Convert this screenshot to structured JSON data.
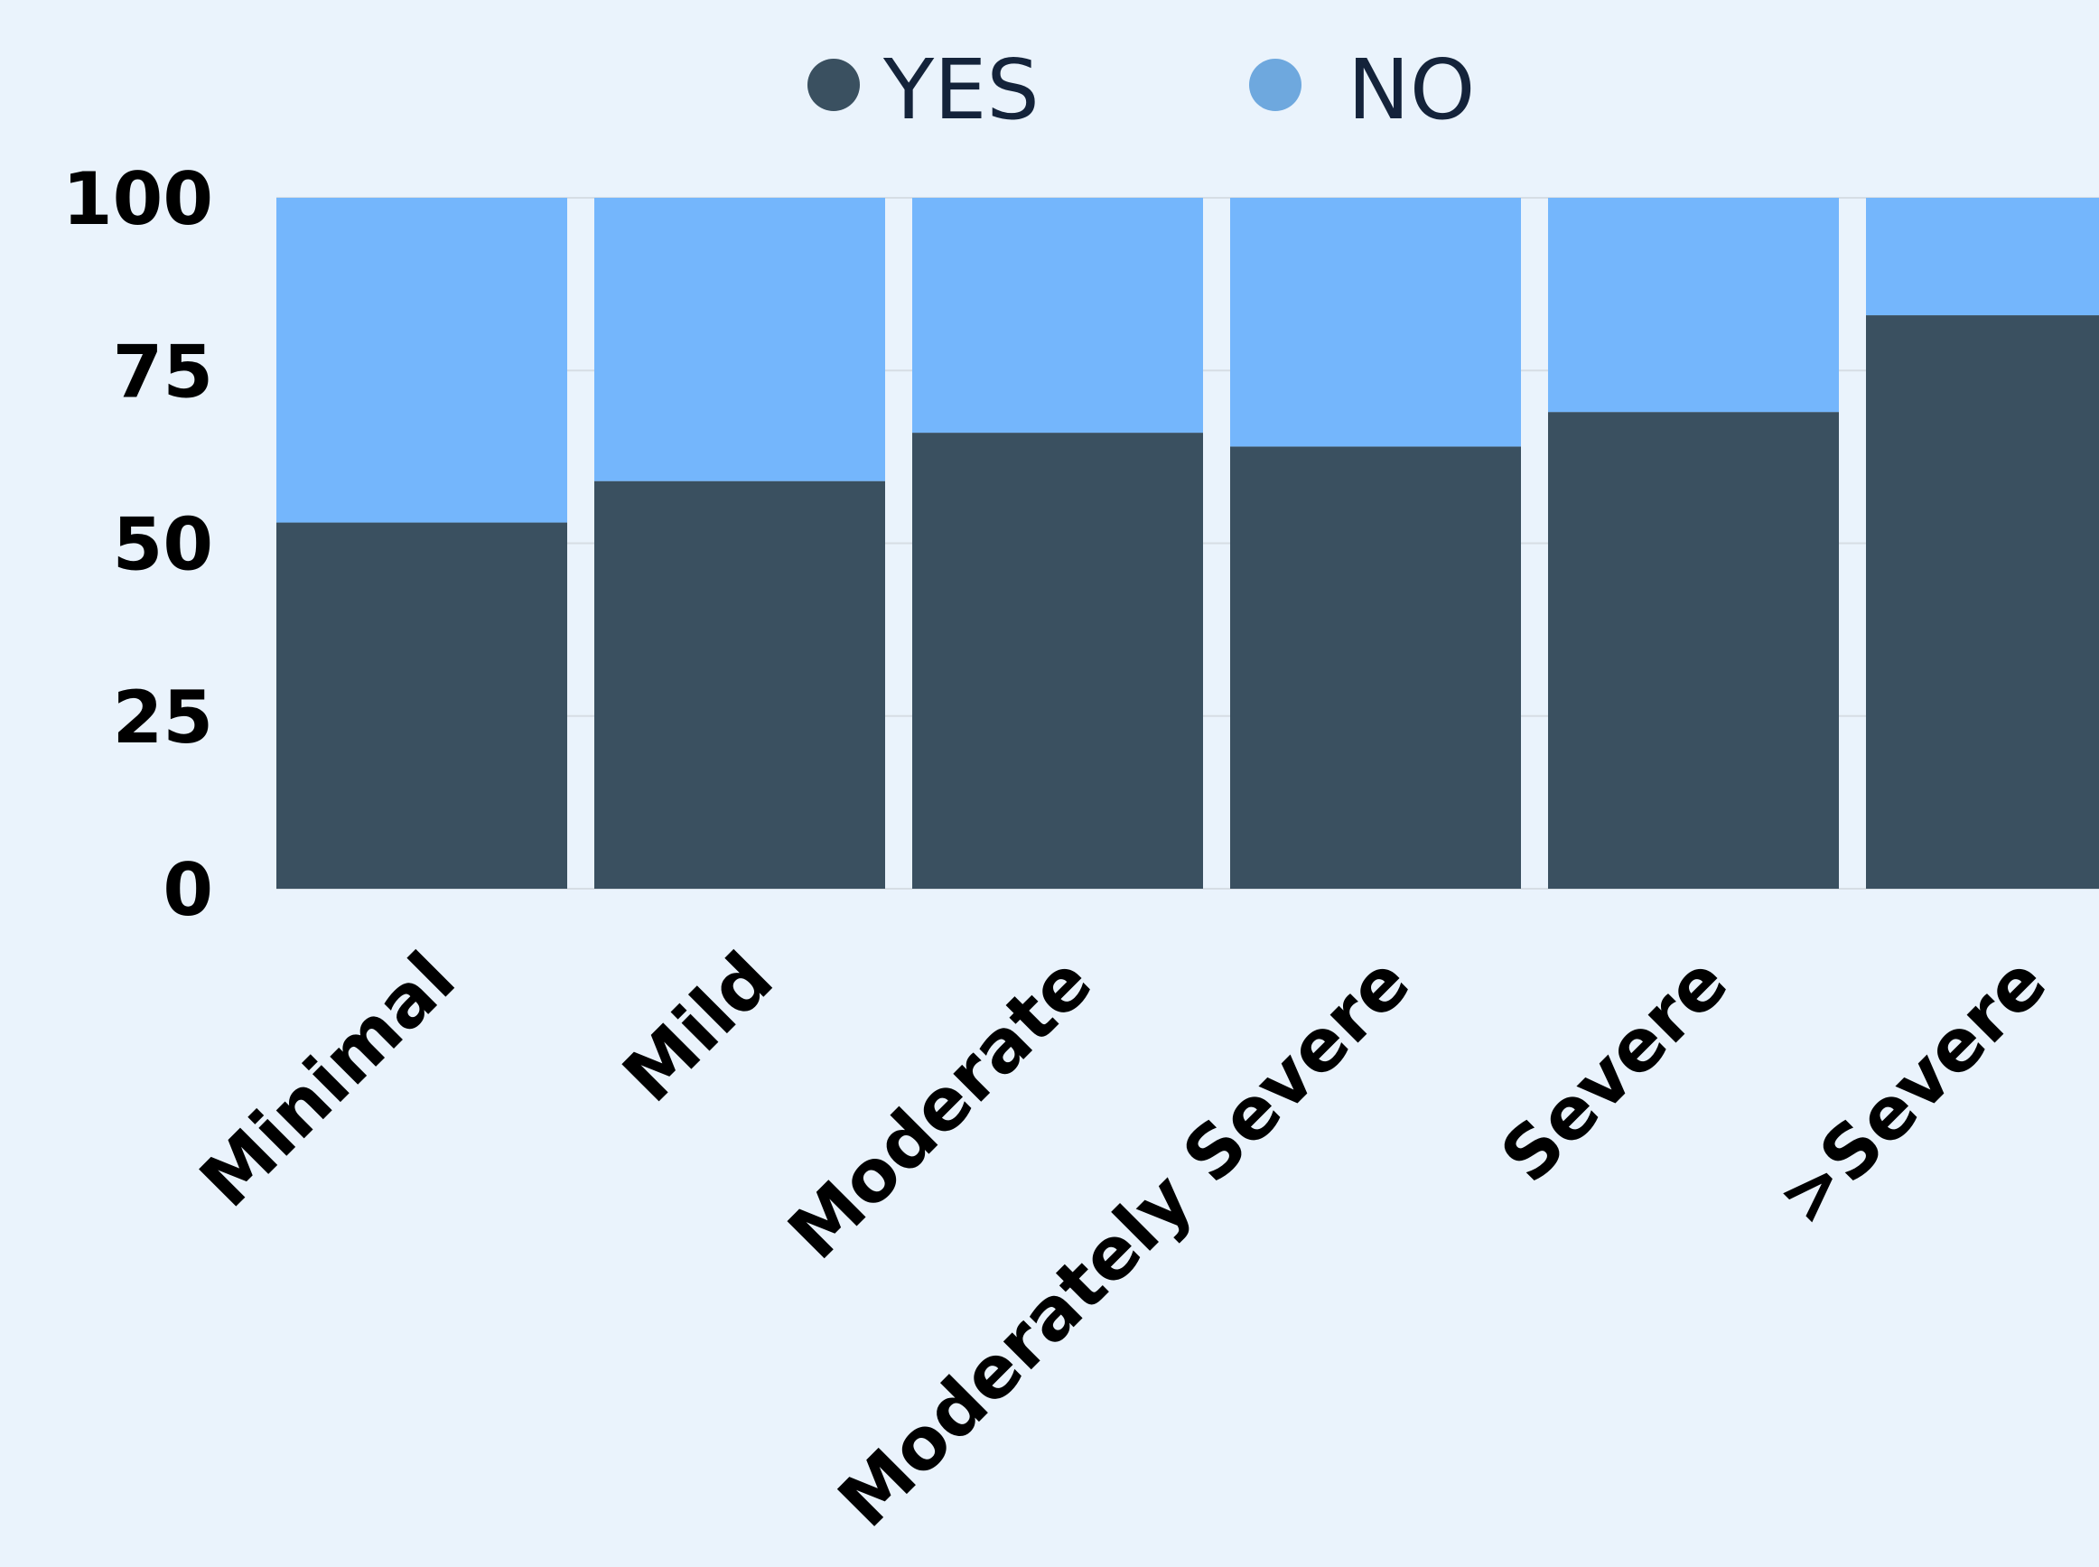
{
  "chart_data": {
    "type": "bar",
    "stacked": true,
    "categories": [
      "Minimal",
      "Mild",
      "Moderate",
      "Moderately Severe",
      "Severe",
      ">Severe"
    ],
    "series": [
      {
        "name": "YES",
        "color": "#3A5060",
        "values": [
          53,
          59,
          66,
          64,
          69,
          83
        ]
      },
      {
        "name": "NO",
        "color": "#74B6FC",
        "values": [
          47,
          41,
          34,
          36,
          31,
          17
        ]
      }
    ],
    "yticks": [
      "0",
      "25",
      "50",
      "75",
      "100"
    ],
    "ylim": [
      0,
      100
    ],
    "grid": true,
    "legend_position": "top-center",
    "legend_markers": [
      "#3A5060",
      "#6EA8DE"
    ],
    "background": "#EAF3FC"
  }
}
